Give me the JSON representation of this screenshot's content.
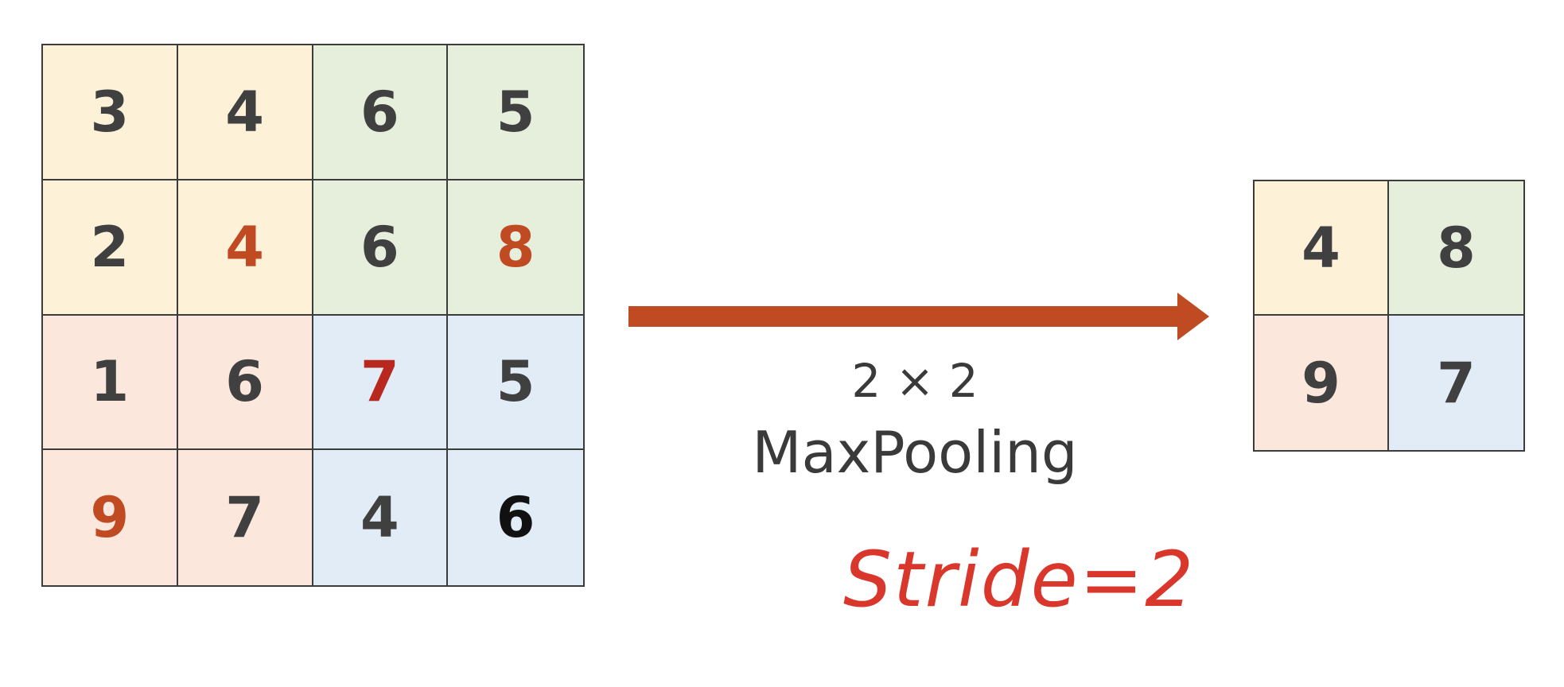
{
  "input_matrix": {
    "rows": [
      [
        {
          "value": "3",
          "region": "yellow",
          "color": "#404040"
        },
        {
          "value": "4",
          "region": "yellow",
          "color": "#404040"
        },
        {
          "value": "6",
          "region": "green",
          "color": "#404040"
        },
        {
          "value": "5",
          "region": "green",
          "color": "#404040"
        }
      ],
      [
        {
          "value": "2",
          "region": "yellow",
          "color": "#404040"
        },
        {
          "value": "4",
          "region": "yellow",
          "color": "#c04a22"
        },
        {
          "value": "6",
          "region": "green",
          "color": "#404040"
        },
        {
          "value": "8",
          "region": "green",
          "color": "#c04a22"
        }
      ],
      [
        {
          "value": "1",
          "region": "peach",
          "color": "#404040"
        },
        {
          "value": "6",
          "region": "peach",
          "color": "#404040"
        },
        {
          "value": "7",
          "region": "blue",
          "color": "#b8281e"
        },
        {
          "value": "5",
          "region": "blue",
          "color": "#404040"
        }
      ],
      [
        {
          "value": "9",
          "region": "peach",
          "color": "#c04a22"
        },
        {
          "value": "7",
          "region": "peach",
          "color": "#404040"
        },
        {
          "value": "4",
          "region": "blue",
          "color": "#404040"
        },
        {
          "value": "6",
          "region": "blue",
          "color": "#111111"
        }
      ]
    ]
  },
  "output_matrix": {
    "rows": [
      [
        {
          "value": "4",
          "region": "yellow",
          "color": "#404040"
        },
        {
          "value": "8",
          "region": "green",
          "color": "#404040"
        }
      ],
      [
        {
          "value": "9",
          "region": "peach",
          "color": "#404040"
        },
        {
          "value": "7",
          "region": "blue",
          "color": "#404040"
        }
      ]
    ]
  },
  "region_colors": {
    "yellow": "#fdf2d8",
    "green": "#e6efdc",
    "peach": "#fbe7dc",
    "blue": "#e2ecf7"
  },
  "operation": {
    "size_label": "2 × 2",
    "name": "MaxPooling",
    "arrow_color": "#c04a22"
  },
  "annotation": {
    "text": "Stride=2",
    "color": "#d9362c"
  }
}
